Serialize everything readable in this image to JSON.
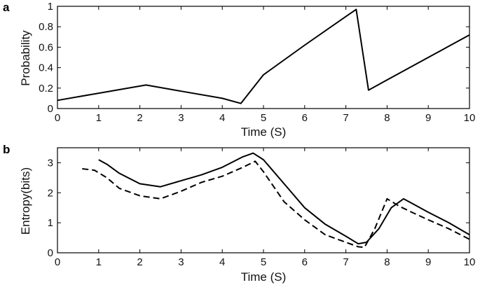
{
  "chart_data": [
    {
      "type": "line",
      "panel": "a",
      "xlabel": "Time (S)",
      "ylabel": "Probability",
      "xlim": [
        0,
        10
      ],
      "ylim": [
        0,
        1
      ],
      "xticks": [
        "0",
        "1",
        "2",
        "3",
        "4",
        "5",
        "6",
        "7",
        "8",
        "9",
        "10"
      ],
      "yticks": [
        "0",
        "0.2",
        "0.4",
        "0.6",
        "0.8",
        "1"
      ],
      "series": [
        {
          "style": "solid",
          "x": [
            0,
            1,
            2.15,
            3,
            4,
            4.45,
            5,
            6,
            7,
            7.25,
            7.55,
            8,
            9,
            10
          ],
          "y": [
            0.08,
            0.15,
            0.23,
            0.17,
            0.1,
            0.05,
            0.33,
            0.62,
            0.9,
            0.97,
            0.18,
            0.28,
            0.5,
            0.72
          ]
        }
      ]
    },
    {
      "type": "line",
      "panel": "b",
      "xlabel": "Time (S)",
      "ylabel": "Entropy(bits)",
      "xlim": [
        0,
        10
      ],
      "ylim": [
        0,
        3.5
      ],
      "xticks": [
        "0",
        "1",
        "2",
        "3",
        "4",
        "5",
        "6",
        "7",
        "8",
        "9",
        "10"
      ],
      "yticks": [
        "0",
        "1",
        "2",
        "3"
      ],
      "series": [
        {
          "style": "solid",
          "x": [
            1.0,
            1.2,
            1.5,
            2.0,
            2.5,
            3.0,
            3.5,
            4.0,
            4.5,
            4.75,
            5.0,
            5.5,
            6.0,
            6.5,
            7.0,
            7.3,
            7.5,
            7.8,
            8.1,
            8.4,
            8.6,
            9.0,
            9.5,
            10.0
          ],
          "y": [
            3.1,
            2.95,
            2.65,
            2.3,
            2.2,
            2.4,
            2.6,
            2.85,
            3.2,
            3.32,
            3.1,
            2.3,
            1.5,
            0.95,
            0.55,
            0.3,
            0.35,
            0.8,
            1.5,
            1.8,
            1.65,
            1.35,
            1.0,
            0.6
          ]
        },
        {
          "style": "dashed",
          "x": [
            0.6,
            0.9,
            1.2,
            1.5,
            2.0,
            2.5,
            3.0,
            3.5,
            4.0,
            4.5,
            4.8,
            5.0,
            5.5,
            6.0,
            6.5,
            7.0,
            7.3,
            7.45,
            7.7,
            8.0,
            8.3,
            8.6,
            9.0,
            9.5,
            10.0
          ],
          "y": [
            2.8,
            2.75,
            2.5,
            2.15,
            1.9,
            1.8,
            2.05,
            2.35,
            2.55,
            2.85,
            3.05,
            2.7,
            1.7,
            1.1,
            0.6,
            0.35,
            0.2,
            0.18,
            0.8,
            1.8,
            1.55,
            1.35,
            1.1,
            0.8,
            0.45
          ]
        }
      ]
    }
  ]
}
